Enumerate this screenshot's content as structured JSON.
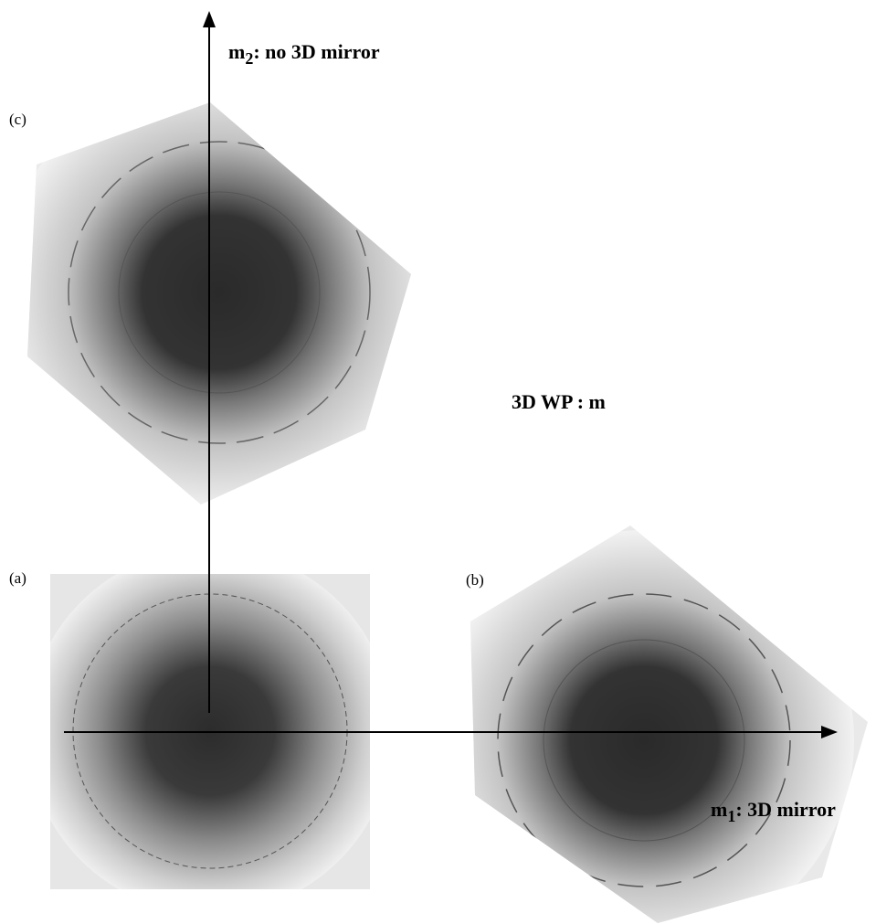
{
  "labels": {
    "axis_vertical": {
      "main": "m",
      "sub": "2",
      "rest": ": no 3D mirror"
    },
    "axis_horizontal": {
      "main": "m",
      "sub": "1",
      "rest": ": 3D mirror"
    },
    "group": "3D WP : m",
    "panels": {
      "a": "(a)",
      "b": "(b)",
      "c": "(c)"
    }
  }
}
